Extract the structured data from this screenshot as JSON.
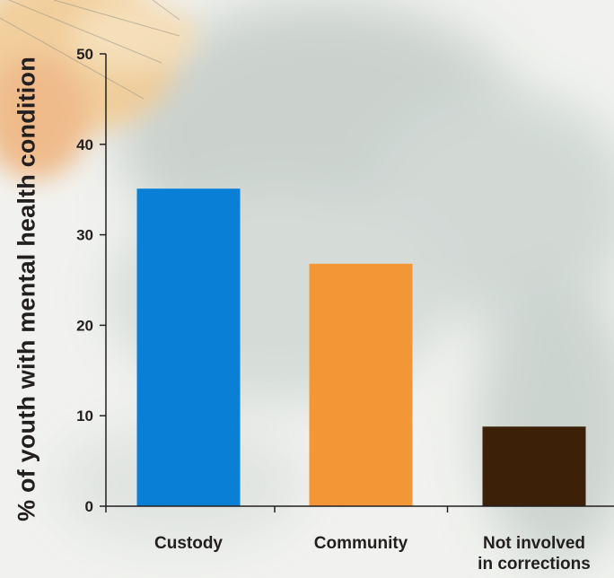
{
  "chart_data": {
    "type": "bar",
    "title": "",
    "xlabel": "",
    "ylabel": "% of youth with mental health condition",
    "ylim": [
      0,
      50
    ],
    "yticks": [
      0,
      10,
      20,
      30,
      40,
      50
    ],
    "categories": [
      [
        "Custody"
      ],
      [
        "Community"
      ],
      [
        "Not involved",
        "in corrections"
      ]
    ],
    "values": [
      35.1,
      26.8,
      8.8
    ],
    "colors": [
      "#0a7fd6",
      "#f39736",
      "#3c2007"
    ],
    "grid": false,
    "legend": "none"
  }
}
